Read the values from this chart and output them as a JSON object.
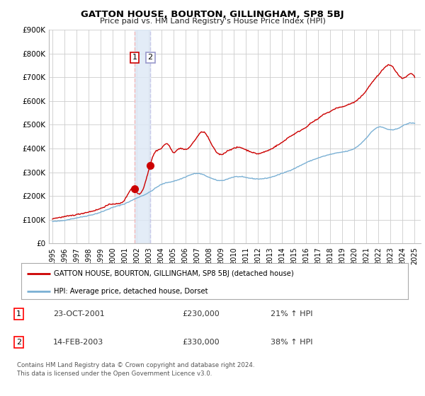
{
  "title": "GATTON HOUSE, BOURTON, GILLINGHAM, SP8 5BJ",
  "subtitle": "Price paid vs. HM Land Registry's House Price Index (HPI)",
  "legend_line1": "GATTON HOUSE, BOURTON, GILLINGHAM, SP8 5BJ (detached house)",
  "legend_line2": "HPI: Average price, detached house, Dorset",
  "transaction1_date": "23-OCT-2001",
  "transaction1_price": "£230,000",
  "transaction1_hpi": "21% ↑ HPI",
  "transaction2_date": "14-FEB-2003",
  "transaction2_price": "£330,000",
  "transaction2_hpi": "38% ↑ HPI",
  "footer": "Contains HM Land Registry data © Crown copyright and database right 2024.\nThis data is licensed under the Open Government Licence v3.0.",
  "red_color": "#cc0000",
  "blue_color": "#7ab0d4",
  "vline1_color": "#f4b8b8",
  "vline2_color": "#c8c8e8",
  "span_color": "#dce8f5",
  "background_color": "#ffffff",
  "grid_color": "#cccccc",
  "ylim": [
    0,
    900000
  ],
  "yticks": [
    0,
    100000,
    200000,
    300000,
    400000,
    500000,
    600000,
    700000,
    800000,
    900000
  ],
  "ytick_labels": [
    "£0",
    "£100K",
    "£200K",
    "£300K",
    "£400K",
    "£500K",
    "£600K",
    "£700K",
    "£800K",
    "£900K"
  ],
  "transaction1_x": 2001.8,
  "transaction2_x": 2003.1,
  "transaction1_y": 230000,
  "transaction2_y": 330000,
  "xtick_years": [
    1995,
    1996,
    1997,
    1998,
    1999,
    2000,
    2001,
    2002,
    2003,
    2004,
    2005,
    2006,
    2007,
    2008,
    2009,
    2010,
    2011,
    2012,
    2013,
    2014,
    2015,
    2016,
    2017,
    2018,
    2019,
    2020,
    2021,
    2022,
    2023,
    2024,
    2025
  ],
  "xlim_min": 1994.7,
  "xlim_max": 2025.5
}
